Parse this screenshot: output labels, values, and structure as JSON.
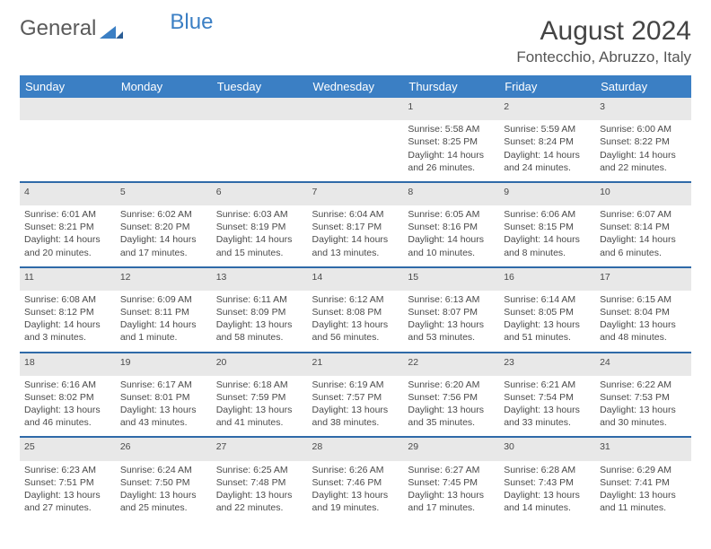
{
  "logo": {
    "text_left": "General",
    "text_right": "Blue"
  },
  "title": "August 2024",
  "location": "Fontecchio, Abruzzo, Italy",
  "colors": {
    "header_bg": "#3b7fc4",
    "header_text": "#ffffff",
    "daynum_bg": "#e8e8e8",
    "row_divider": "#2f6aa8",
    "body_text": "#4a4a4a",
    "daynum_text": "#777777"
  },
  "weekdays": [
    "Sunday",
    "Monday",
    "Tuesday",
    "Wednesday",
    "Thursday",
    "Friday",
    "Saturday"
  ],
  "weeks": [
    [
      {
        "day": "",
        "lines": []
      },
      {
        "day": "",
        "lines": []
      },
      {
        "day": "",
        "lines": []
      },
      {
        "day": "",
        "lines": []
      },
      {
        "day": "1",
        "lines": [
          "Sunrise: 5:58 AM",
          "Sunset: 8:25 PM",
          "Daylight: 14 hours and 26 minutes."
        ]
      },
      {
        "day": "2",
        "lines": [
          "Sunrise: 5:59 AM",
          "Sunset: 8:24 PM",
          "Daylight: 14 hours and 24 minutes."
        ]
      },
      {
        "day": "3",
        "lines": [
          "Sunrise: 6:00 AM",
          "Sunset: 8:22 PM",
          "Daylight: 14 hours and 22 minutes."
        ]
      }
    ],
    [
      {
        "day": "4",
        "lines": [
          "Sunrise: 6:01 AM",
          "Sunset: 8:21 PM",
          "Daylight: 14 hours and 20 minutes."
        ]
      },
      {
        "day": "5",
        "lines": [
          "Sunrise: 6:02 AM",
          "Sunset: 8:20 PM",
          "Daylight: 14 hours and 17 minutes."
        ]
      },
      {
        "day": "6",
        "lines": [
          "Sunrise: 6:03 AM",
          "Sunset: 8:19 PM",
          "Daylight: 14 hours and 15 minutes."
        ]
      },
      {
        "day": "7",
        "lines": [
          "Sunrise: 6:04 AM",
          "Sunset: 8:17 PM",
          "Daylight: 14 hours and 13 minutes."
        ]
      },
      {
        "day": "8",
        "lines": [
          "Sunrise: 6:05 AM",
          "Sunset: 8:16 PM",
          "Daylight: 14 hours and 10 minutes."
        ]
      },
      {
        "day": "9",
        "lines": [
          "Sunrise: 6:06 AM",
          "Sunset: 8:15 PM",
          "Daylight: 14 hours and 8 minutes."
        ]
      },
      {
        "day": "10",
        "lines": [
          "Sunrise: 6:07 AM",
          "Sunset: 8:14 PM",
          "Daylight: 14 hours and 6 minutes."
        ]
      }
    ],
    [
      {
        "day": "11",
        "lines": [
          "Sunrise: 6:08 AM",
          "Sunset: 8:12 PM",
          "Daylight: 14 hours and 3 minutes."
        ]
      },
      {
        "day": "12",
        "lines": [
          "Sunrise: 6:09 AM",
          "Sunset: 8:11 PM",
          "Daylight: 14 hours and 1 minute."
        ]
      },
      {
        "day": "13",
        "lines": [
          "Sunrise: 6:11 AM",
          "Sunset: 8:09 PM",
          "Daylight: 13 hours and 58 minutes."
        ]
      },
      {
        "day": "14",
        "lines": [
          "Sunrise: 6:12 AM",
          "Sunset: 8:08 PM",
          "Daylight: 13 hours and 56 minutes."
        ]
      },
      {
        "day": "15",
        "lines": [
          "Sunrise: 6:13 AM",
          "Sunset: 8:07 PM",
          "Daylight: 13 hours and 53 minutes."
        ]
      },
      {
        "day": "16",
        "lines": [
          "Sunrise: 6:14 AM",
          "Sunset: 8:05 PM",
          "Daylight: 13 hours and 51 minutes."
        ]
      },
      {
        "day": "17",
        "lines": [
          "Sunrise: 6:15 AM",
          "Sunset: 8:04 PM",
          "Daylight: 13 hours and 48 minutes."
        ]
      }
    ],
    [
      {
        "day": "18",
        "lines": [
          "Sunrise: 6:16 AM",
          "Sunset: 8:02 PM",
          "Daylight: 13 hours and 46 minutes."
        ]
      },
      {
        "day": "19",
        "lines": [
          "Sunrise: 6:17 AM",
          "Sunset: 8:01 PM",
          "Daylight: 13 hours and 43 minutes."
        ]
      },
      {
        "day": "20",
        "lines": [
          "Sunrise: 6:18 AM",
          "Sunset: 7:59 PM",
          "Daylight: 13 hours and 41 minutes."
        ]
      },
      {
        "day": "21",
        "lines": [
          "Sunrise: 6:19 AM",
          "Sunset: 7:57 PM",
          "Daylight: 13 hours and 38 minutes."
        ]
      },
      {
        "day": "22",
        "lines": [
          "Sunrise: 6:20 AM",
          "Sunset: 7:56 PM",
          "Daylight: 13 hours and 35 minutes."
        ]
      },
      {
        "day": "23",
        "lines": [
          "Sunrise: 6:21 AM",
          "Sunset: 7:54 PM",
          "Daylight: 13 hours and 33 minutes."
        ]
      },
      {
        "day": "24",
        "lines": [
          "Sunrise: 6:22 AM",
          "Sunset: 7:53 PM",
          "Daylight: 13 hours and 30 minutes."
        ]
      }
    ],
    [
      {
        "day": "25",
        "lines": [
          "Sunrise: 6:23 AM",
          "Sunset: 7:51 PM",
          "Daylight: 13 hours and 27 minutes."
        ]
      },
      {
        "day": "26",
        "lines": [
          "Sunrise: 6:24 AM",
          "Sunset: 7:50 PM",
          "Daylight: 13 hours and 25 minutes."
        ]
      },
      {
        "day": "27",
        "lines": [
          "Sunrise: 6:25 AM",
          "Sunset: 7:48 PM",
          "Daylight: 13 hours and 22 minutes."
        ]
      },
      {
        "day": "28",
        "lines": [
          "Sunrise: 6:26 AM",
          "Sunset: 7:46 PM",
          "Daylight: 13 hours and 19 minutes."
        ]
      },
      {
        "day": "29",
        "lines": [
          "Sunrise: 6:27 AM",
          "Sunset: 7:45 PM",
          "Daylight: 13 hours and 17 minutes."
        ]
      },
      {
        "day": "30",
        "lines": [
          "Sunrise: 6:28 AM",
          "Sunset: 7:43 PM",
          "Daylight: 13 hours and 14 minutes."
        ]
      },
      {
        "day": "31",
        "lines": [
          "Sunrise: 6:29 AM",
          "Sunset: 7:41 PM",
          "Daylight: 13 hours and 11 minutes."
        ]
      }
    ]
  ]
}
